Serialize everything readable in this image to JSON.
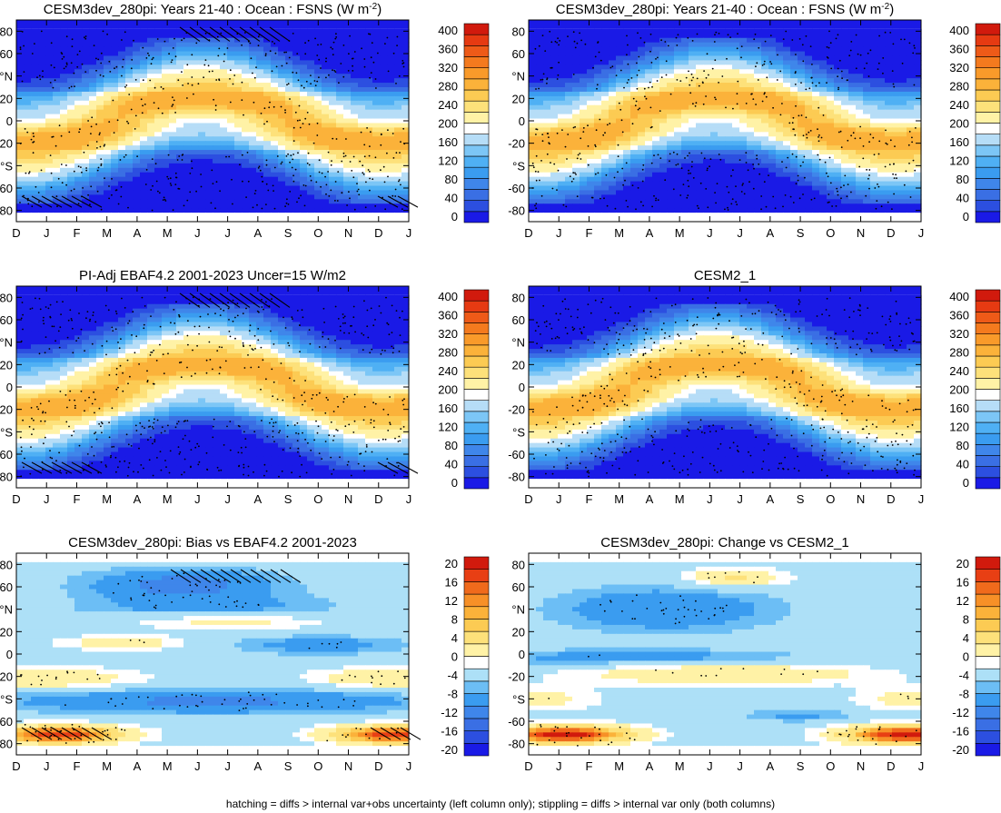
{
  "footnote": "hatching = diffs > internal var+obs uncertainty (left column only); stippling = diffs > internal var only (both columns)",
  "palettes": {
    "abs": [
      "#1a1ae6",
      "#2c4fe0",
      "#3a6fe4",
      "#3f86ea",
      "#3a9cf0",
      "#4fb0f4",
      "#7cc6f6",
      "#b6ddf7",
      "#ffffff",
      "#fff2a6",
      "#fde17a",
      "#fccb53",
      "#fbb23a",
      "#f99a2a",
      "#f47a1e",
      "#ee5a18",
      "#e63a12",
      "#d11a0d"
    ],
    "diff": [
      "#1a1ae6",
      "#2c4fe0",
      "#3a6fe4",
      "#3f86ea",
      "#3a9cf0",
      "#6cbef5",
      "#ade0f7",
      "#ffffff",
      "#fff2a6",
      "#fde17a",
      "#fccb53",
      "#fbb23a",
      "#f79027",
      "#f06a1c",
      "#e83f14",
      "#d11a0d"
    ]
  },
  "chart_data": [
    {
      "type": "heatmap",
      "title": "CESM3dev_280pi: Years 21-40 : Ocean : FSNS (W m",
      "title_sup": "-2",
      "title_suffix": ")",
      "x_ticklabels": [
        "D",
        "J",
        "F",
        "M",
        "A",
        "M",
        "J",
        "J",
        "A",
        "S",
        "O",
        "N",
        "D",
        "J"
      ],
      "y_ticklabels": [
        "80",
        "60",
        "°N",
        "20",
        "0",
        "-20",
        "°S",
        "-60",
        "-80"
      ],
      "y_range": [
        -90,
        90
      ],
      "colorbar_labels": [
        "400",
        "360",
        "320",
        "280",
        "240",
        "200",
        "160",
        "120",
        "80",
        "40",
        "0"
      ],
      "colorbar_range": [
        0,
        420
      ],
      "field": "abs",
      "hatching": true
    },
    {
      "type": "heatmap",
      "title": "CESM3dev_280pi: Years 21-40 : Ocean : FSNS (W m",
      "title_sup": "-2",
      "title_suffix": ")",
      "x_ticklabels": [
        "D",
        "J",
        "F",
        "M",
        "A",
        "M",
        "J",
        "J",
        "A",
        "S",
        "O",
        "N",
        "D",
        "J"
      ],
      "y_ticklabels": [
        "80",
        "60",
        "°N",
        "20",
        "0",
        "-20",
        "°S",
        "-60",
        "-80"
      ],
      "y_range": [
        -90,
        90
      ],
      "colorbar_labels": [
        "400",
        "360",
        "320",
        "280",
        "240",
        "200",
        "160",
        "120",
        "80",
        "40",
        "0"
      ],
      "colorbar_range": [
        0,
        420
      ],
      "field": "abs",
      "hatching": false
    },
    {
      "type": "heatmap",
      "title": "PI-Adj EBAF4.2 2001-2023 Uncer=15 W/m2",
      "x_ticklabels": [
        "D",
        "J",
        "F",
        "M",
        "A",
        "M",
        "J",
        "J",
        "A",
        "S",
        "O",
        "N",
        "D",
        "J"
      ],
      "y_ticklabels": [
        "80",
        "60",
        "°N",
        "20",
        "0",
        "-20",
        "°S",
        "-60",
        "-80"
      ],
      "y_range": [
        -90,
        90
      ],
      "colorbar_labels": [
        "400",
        "360",
        "320",
        "280",
        "240",
        "200",
        "160",
        "120",
        "80",
        "40",
        "0"
      ],
      "colorbar_range": [
        0,
        420
      ],
      "field": "abs",
      "hatching": true
    },
    {
      "type": "heatmap",
      "title": "CESM2_1",
      "x_ticklabels": [
        "D",
        "J",
        "F",
        "M",
        "A",
        "M",
        "J",
        "J",
        "A",
        "S",
        "O",
        "N",
        "D",
        "J"
      ],
      "y_ticklabels": [
        "80",
        "60",
        "°N",
        "20",
        "0",
        "-20",
        "°S",
        "-60",
        "-80"
      ],
      "y_range": [
        -90,
        90
      ],
      "colorbar_labels": [
        "400",
        "360",
        "320",
        "280",
        "240",
        "200",
        "160",
        "120",
        "80",
        "40",
        "0"
      ],
      "colorbar_range": [
        0,
        420
      ],
      "field": "abs",
      "hatching": false
    },
    {
      "type": "heatmap",
      "title": "CESM3dev_280pi: Bias vs EBAF4.2 2001-2023",
      "x_ticklabels": [
        "D",
        "J",
        "F",
        "M",
        "A",
        "M",
        "J",
        "J",
        "A",
        "S",
        "O",
        "N",
        "D",
        "J"
      ],
      "y_ticklabels": [
        "80",
        "60",
        "°N",
        "20",
        "0",
        "-20",
        "°S",
        "-60",
        "-80"
      ],
      "y_range": [
        -90,
        90
      ],
      "colorbar_labels": [
        "20",
        "16",
        "12",
        "8",
        "4",
        "0",
        "-4",
        "-8",
        "-12",
        "-16",
        "-20"
      ],
      "colorbar_range": [
        -22,
        22
      ],
      "field": "bias",
      "hatching": true
    },
    {
      "type": "heatmap",
      "title": "CESM3dev_280pi: Change vs CESM2_1",
      "x_ticklabels": [
        "D",
        "J",
        "F",
        "M",
        "A",
        "M",
        "J",
        "J",
        "A",
        "S",
        "O",
        "N",
        "D",
        "J"
      ],
      "y_ticklabels": [
        "80",
        "60",
        "°N",
        "20",
        "0",
        "-20",
        "°S",
        "-60",
        "-80"
      ],
      "y_range": [
        -90,
        90
      ],
      "colorbar_labels": [
        "20",
        "16",
        "12",
        "8",
        "4",
        "0",
        "-4",
        "-8",
        "-12",
        "-16",
        "-20"
      ],
      "colorbar_range": [
        -22,
        22
      ],
      "field": "change",
      "hatching": false
    }
  ]
}
